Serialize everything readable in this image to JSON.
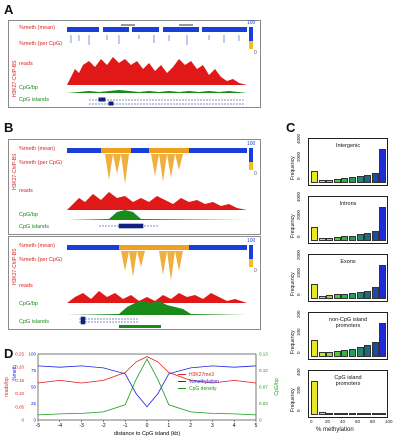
{
  "panels": {
    "a": "A",
    "b": "B",
    "c": "C",
    "d": "D"
  },
  "track_labels": {
    "meth_mean": "%meth (mean)",
    "meth_cpg": "%meth (per CpG)",
    "reads": "reads",
    "cpg_bp": "CpG/bp",
    "cpg_islands": "CpG islands",
    "chip": "H3K27-ChIP-BS"
  },
  "gradient_scale": {
    "top": "100",
    "bottom": "0"
  },
  "hist": {
    "regions": [
      "Intergenic",
      "Introns",
      "Exons",
      "non-CpG island\npromoters",
      "CpG island\npromoters"
    ],
    "y_label": "Frequency",
    "x_label": "% methylation",
    "x_ticks": [
      "0",
      "20",
      "40",
      "60",
      "80",
      "100"
    ],
    "y_ticks": [
      [
        "0",
        "2000",
        "4000"
      ],
      [
        "0",
        "2000",
        "4000"
      ],
      [
        "0",
        "1000",
        "2000"
      ],
      [
        "0",
        "100",
        "200"
      ],
      [
        "0",
        "200",
        "400"
      ]
    ],
    "colors": [
      "#e8e829",
      "#c6e82a",
      "#8fdc2e",
      "#55cc35",
      "#2bb83a",
      "#1ea05a",
      "#1b8a6e",
      "#1a6a86",
      "#1d4aa6",
      "#1f2bd4"
    ]
  },
  "chart_data": {
    "type": "line",
    "x": [
      -5,
      -4,
      -3,
      -2,
      -1,
      -0.5,
      0,
      0.5,
      1,
      2,
      3,
      4,
      5
    ],
    "series": [
      {
        "name": "H3K27me3",
        "values": [
          0.14,
          0.15,
          0.14,
          0.15,
          0.18,
          0.22,
          0.24,
          0.22,
          0.18,
          0.15,
          0.14,
          0.15,
          0.14
        ]
      },
      {
        "name": "%methylation",
        "values": [
          82,
          80,
          82,
          79,
          70,
          40,
          20,
          40,
          70,
          79,
          82,
          80,
          82
        ]
      },
      {
        "name": "CpG density",
        "values": [
          0.01,
          0.012,
          0.013,
          0.016,
          0.03,
          0.08,
          0.12,
          0.08,
          0.03,
          0.016,
          0.013,
          0.012,
          0.01
        ]
      }
    ],
    "x_ticks": [
      "-5",
      "-4",
      "-3",
      "-2",
      "-1",
      "0",
      "1",
      "2",
      "3",
      "4",
      "5"
    ],
    "y_left_ticks": [
      "0",
      "0.05",
      "0.10",
      "0.15",
      "0.20",
      "0.25"
    ],
    "y_mid_ticks": [
      "0",
      "25",
      "50",
      "75",
      "100"
    ],
    "y_right_ticks": [
      "0",
      "0.03",
      "0.07",
      "0.10",
      "0.13"
    ],
    "xlabel": "distance to CpG island (kb)",
    "ylabel_left": "reads/bp",
    "ylabel_mid": "%meth",
    "ylabel_right": "CpG/bp",
    "xlim": [
      -5,
      5
    ],
    "colors": {
      "H3K27me3": "#e02020",
      "%methylation": "#2020e0",
      "CpG density": "#1a9a1a"
    }
  }
}
